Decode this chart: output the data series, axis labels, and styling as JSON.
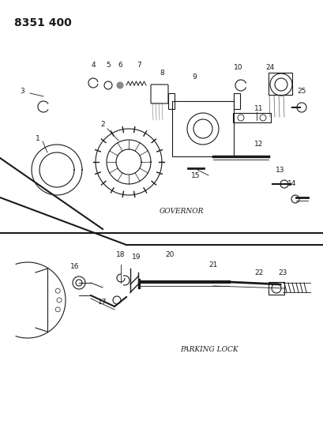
{
  "title": "8351 400",
  "governor_label": "GOVERNOR",
  "parking_label": "PARKING LOCK",
  "bg_color": "#ffffff",
  "line_color": "#1a1a1a",
  "title_fontsize": 10,
  "label_fontsize": 6.5,
  "num_fontsize": 6.5,
  "fig_width": 4.1,
  "fig_height": 5.33,
  "dpi": 100
}
